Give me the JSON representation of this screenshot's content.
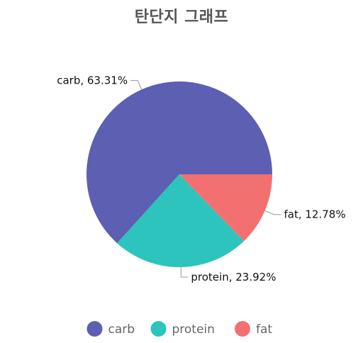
{
  "chart_data": {
    "type": "pie",
    "title": "탄단지 그래프",
    "slices": [
      {
        "name": "carb",
        "value": 63.31,
        "label": "carb, 63.31%",
        "color": "#5d5fb2"
      },
      {
        "name": "protein",
        "value": 23.92,
        "label": "protein, 23.92%",
        "color": "#2cc4bc"
      },
      {
        "name": "fat",
        "value": 12.78,
        "label": "fat, 12.78%",
        "color": "#f27170"
      }
    ],
    "legend": {
      "placement": "bottom",
      "items": [
        "carb",
        "protein",
        "fat"
      ]
    }
  }
}
